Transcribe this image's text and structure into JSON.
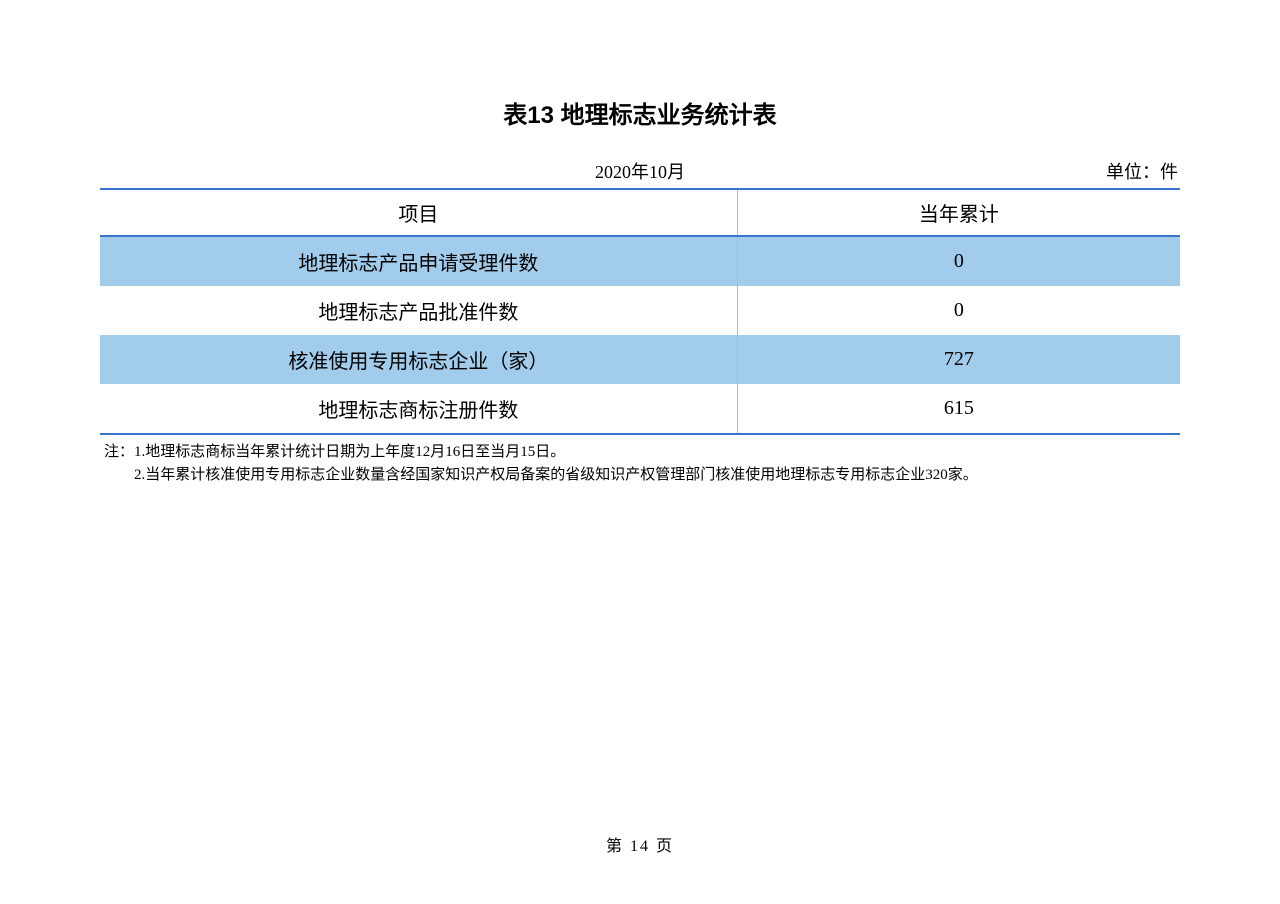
{
  "title": "表13 地理标志业务统计表",
  "date": "2020年10月",
  "unit": "单位：件",
  "table": {
    "type": "table",
    "columns": [
      "项目",
      "当年累计"
    ],
    "column_widths_pct": [
      59,
      41
    ],
    "rows": [
      {
        "label": "地理标志产品申请受理件数",
        "value": "0",
        "highlight": true
      },
      {
        "label": "地理标志产品批准件数",
        "value": "0",
        "highlight": false
      },
      {
        "label": "核准使用专用标志企业（家）",
        "value": "727",
        "highlight": true
      },
      {
        "label": "地理标志商标注册件数",
        "value": "615",
        "highlight": false
      }
    ],
    "border_color": "#3973d1",
    "highlight_bg": "#a2ccec",
    "cell_divider_color": "#b8b8b8",
    "background_color": "#ffffff",
    "header_fontsize": 20,
    "cell_fontsize": 20,
    "text_color": "#000000"
  },
  "notes": {
    "prefix": "注：",
    "lines": [
      "1.地理标志商标当年累计统计日期为上年度12月16日至当月15日。",
      "2.当年累计核准使用专用标志企业数量含经国家知识产权局备案的省级知识产权管理部门核准使用地理标志专用标志企业320家。"
    ]
  },
  "page_number": "第 14 页"
}
